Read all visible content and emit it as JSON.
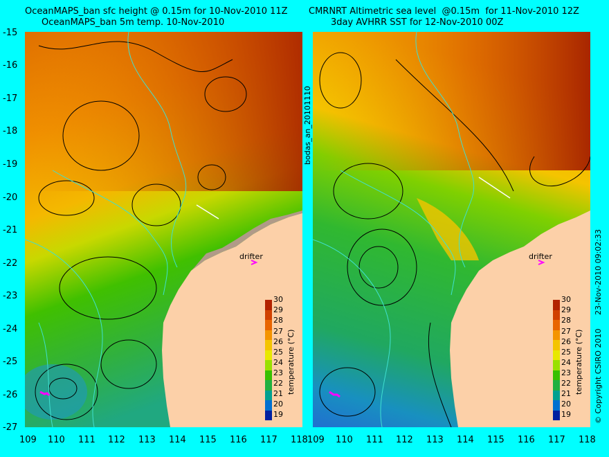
{
  "titles": {
    "left_line1": "OceanMAPS_ban sfc height @ 0.15m for 10-Nov-2010 11Z",
    "left_line2": "OceanMAPS_ban 5m temp. 10-Nov-2010",
    "right_line1": "CMRNRT Altimetric sea level  @0.15m  for 11-Nov-2010 12Z",
    "right_line2": "3day AVHRR SST for 12-Nov-2010 00Z"
  },
  "axes": {
    "y_ticks": [
      "-15",
      "-16",
      "-17",
      "-18",
      "-19",
      "-20",
      "-21",
      "-22",
      "-23",
      "-24",
      "-25",
      "-26",
      "-27"
    ],
    "x_ticks_left": [
      "109",
      "110",
      "111",
      "112",
      "113",
      "114",
      "115",
      "116",
      "117",
      "118"
    ],
    "x_ticks_right": [
      "109",
      "110",
      "111",
      "112",
      "113",
      "114",
      "115",
      "116",
      "117",
      "118"
    ]
  },
  "colorbar": {
    "label": "temperature (°C)",
    "ticks": [
      "30",
      "29",
      "28",
      "27",
      "26",
      "25",
      "24",
      "23",
      "22",
      "21",
      "20",
      "19"
    ],
    "colors": [
      "#b22200",
      "#d04000",
      "#e86400",
      "#f49400",
      "#f4c400",
      "#e8e800",
      "#9ae000",
      "#38c000",
      "#20b040",
      "#00a090",
      "#0070d0",
      "#0020a0"
    ]
  },
  "annotations": {
    "drifter_left": "drifter",
    "drifter_right": "drifter",
    "run_id": "bodas_an_20101110",
    "timestamp": "23-Nov-2010 09:02:33",
    "copyright": "© Copyright CSIRO 2010"
  },
  "colors": {
    "background": "#00ffff",
    "land": "#fcd0a8",
    "drifter": "#ff00ff",
    "contour": "#000000",
    "isobath": "#40e0d0"
  }
}
